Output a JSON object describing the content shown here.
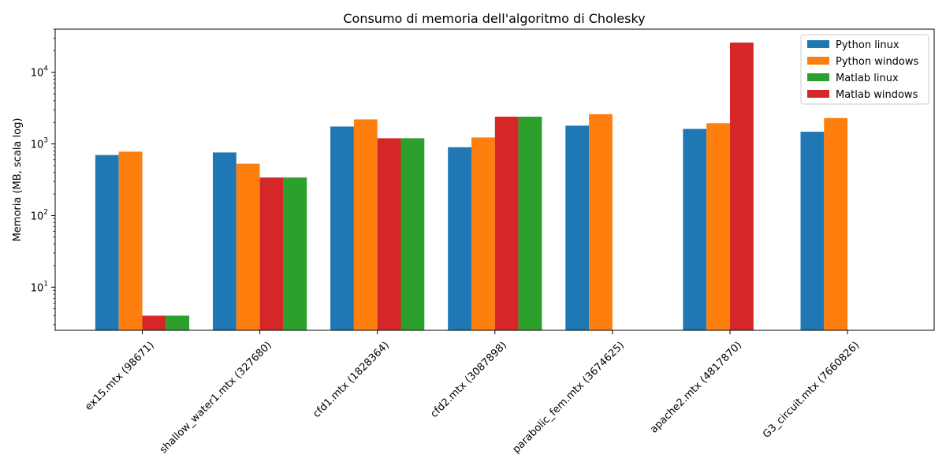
{
  "chart_data": {
    "type": "bar",
    "title": "Consumo di memoria dell'algoritmo di Cholesky",
    "xlabel": "",
    "ylabel": "Memoria (MB, scala log)",
    "yscale": "log",
    "ylim": [
      2.5,
      40000
    ],
    "yticks": [
      {
        "value": 10,
        "base": "10",
        "exp": "1"
      },
      {
        "value": 100,
        "base": "10",
        "exp": "2"
      },
      {
        "value": 1000,
        "base": "10",
        "exp": "3"
      },
      {
        "value": 10000,
        "base": "10",
        "exp": "4"
      }
    ],
    "grid": false,
    "legend_position": "top-right",
    "categories": [
      "ex15.mtx (98671)",
      "shallow_water1.mtx (327680)",
      "cfd1.mtx (1828364)",
      "cfd2.mtx (3087898)",
      "parabolic_fem.mtx (3674625)",
      "apache2.mtx (4817870)",
      "G3_circuit.mtx (7660826)"
    ],
    "series": [
      {
        "name": "Python linux",
        "color": "#1f77b4",
        "values": [
          700,
          760,
          1750,
          900,
          1800,
          1620,
          1480
        ]
      },
      {
        "name": "Python windows",
        "color": "#ff7f0e",
        "values": [
          780,
          530,
          2200,
          1230,
          2600,
          1950,
          2300
        ]
      },
      {
        "name": "Matlab linux",
        "color": "#2ca02c",
        "values": [
          4,
          340,
          1200,
          2400,
          null,
          null,
          null
        ]
      },
      {
        "name": "Matlab windows",
        "color": "#d62728",
        "values": [
          4,
          340,
          1200,
          2400,
          null,
          26000,
          null
        ]
      }
    ],
    "bar_order": [
      "Python linux",
      "Python windows",
      "Matlab windows",
      "Matlab linux"
    ]
  }
}
